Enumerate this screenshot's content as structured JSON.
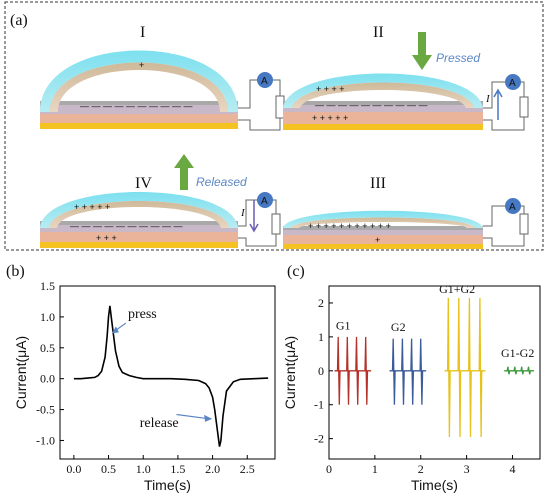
{
  "panel_a": {
    "label": "(a)",
    "stages": [
      {
        "roman": "I"
      },
      {
        "roman": "II",
        "action": "Pressed"
      },
      {
        "roman": "III"
      },
      {
        "roman": "IV",
        "action": "Released"
      }
    ],
    "ammeter": "A",
    "current_symbol": "I",
    "arrow_color": "#6aa842"
  },
  "panel_b": {
    "label": "(b)",
    "annotations": [
      "press",
      "release"
    ]
  },
  "panel_c": {
    "label": "(c)",
    "annotations": [
      "G1",
      "G2",
      "G1+G2",
      "G1-G2"
    ]
  },
  "chart_data": [
    {
      "id": "b",
      "type": "line",
      "xlabel": "Time(s)",
      "ylabel": "Current(μA)",
      "xlim": [
        -0.2,
        2.9
      ],
      "ylim": [
        -1.3,
        1.5
      ],
      "xticks": [
        0.0,
        0.5,
        1.0,
        1.5,
        2.0,
        2.5
      ],
      "xtick_labels": [
        "0.0",
        "0.5",
        "1.0",
        "1.5",
        "2.0",
        "2.5"
      ],
      "yticks": [
        -1.0,
        -0.5,
        0.0,
        0.5,
        1.0,
        1.5
      ],
      "ytick_labels": [
        "-1.0",
        "-0.5",
        "0.0",
        "0.5",
        "1.0",
        "1.5"
      ],
      "color": "#000000",
      "series": [
        {
          "x": [
            0.0,
            0.1,
            0.2,
            0.3,
            0.35,
            0.4,
            0.45,
            0.48,
            0.5,
            0.52,
            0.55,
            0.6,
            0.65,
            0.7,
            0.8,
            0.9,
            1.0,
            1.2,
            1.4,
            1.6,
            1.8,
            1.9,
            1.95,
            2.0,
            2.03,
            2.06,
            2.1,
            2.12,
            2.15,
            2.2,
            2.3,
            2.4,
            2.6,
            2.8
          ],
          "y": [
            0.0,
            0.0,
            0.01,
            0.02,
            0.05,
            0.12,
            0.35,
            0.7,
            1.0,
            1.18,
            0.9,
            0.45,
            0.2,
            0.1,
            0.05,
            0.02,
            0.0,
            0.0,
            0.0,
            -0.01,
            -0.03,
            -0.08,
            -0.15,
            -0.3,
            -0.5,
            -0.75,
            -1.1,
            -1.0,
            -0.6,
            -0.2,
            -0.05,
            -0.01,
            0.0,
            0.01
          ]
        }
      ],
      "annotations": [
        {
          "text": "press",
          "arrow_to": [
            0.52,
            0.75
          ]
        },
        {
          "text": "release",
          "arrow_to": [
            1.95,
            -0.65
          ]
        }
      ]
    },
    {
      "id": "c",
      "type": "line",
      "xlabel": "Time(s)",
      "ylabel": "Current(μA)",
      "xlim": [
        0,
        4.6
      ],
      "ylim": [
        -2.6,
        2.5
      ],
      "xticks": [
        0,
        1,
        2,
        3,
        4
      ],
      "xtick_labels": [
        "0",
        "1",
        "2",
        "3",
        "4"
      ],
      "yticks": [
        -2,
        -1,
        0,
        1,
        2
      ],
      "ytick_labels": [
        "-2",
        "-1",
        "0",
        "1",
        "2"
      ],
      "series": [
        {
          "label": "G1",
          "color": "#b5322a",
          "x0": 0.2,
          "dx": 0.2,
          "count": 4,
          "up": 1.0,
          "down": -1.0
        },
        {
          "label": "G2",
          "color": "#3b5b9a",
          "x0": 1.4,
          "dx": 0.2,
          "count": 4,
          "up": 0.95,
          "down": -1.0
        },
        {
          "label": "G1+G2",
          "color": "#e6c21a",
          "x0": 2.6,
          "dx": 0.23,
          "count": 4,
          "up": 2.15,
          "down": -1.95
        },
        {
          "label": "G1-G2",
          "color": "#3f9a3f",
          "x0": 3.9,
          "dx": 0.15,
          "count": 4,
          "up": 0.12,
          "down": -0.1
        }
      ]
    }
  ]
}
